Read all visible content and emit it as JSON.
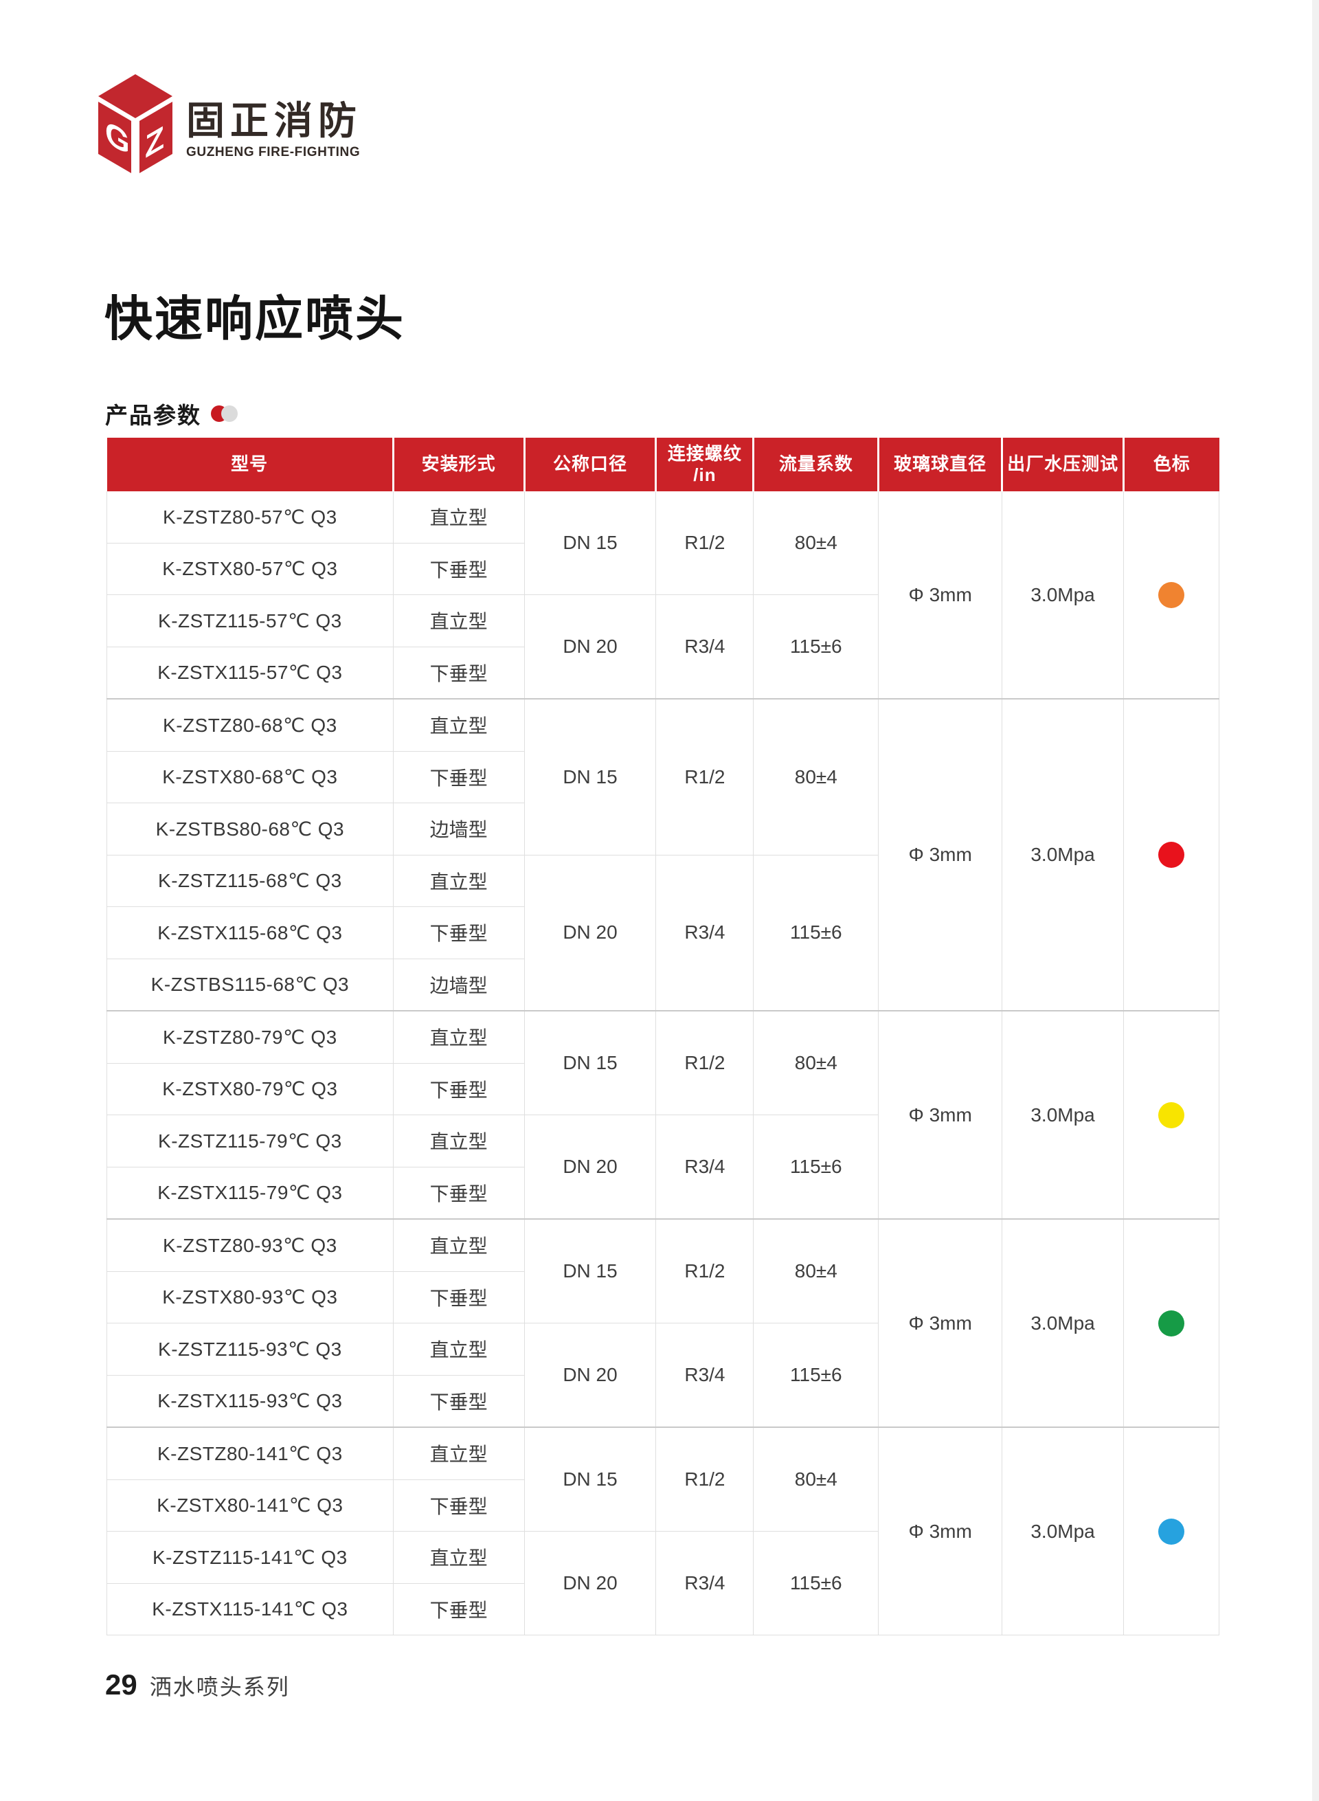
{
  "logo": {
    "mark_letters_left": "G",
    "mark_letters_right": "Z",
    "mark_color": "#c2272e",
    "brand_cn": "固正消防",
    "brand_en": "GUZHENG FIRE-FIGHTING"
  },
  "title": "快速响应喷头",
  "section": {
    "label": "产品参数",
    "icon": "red-gray-dots-icon",
    "icon_red": "#c81a21",
    "icon_gray": "#dbdbdb"
  },
  "table": {
    "header_bg": "#cb2228",
    "columns": [
      {
        "key": "model",
        "label": "型号"
      },
      {
        "key": "install",
        "label": "安装形式"
      },
      {
        "key": "dn",
        "label": "公称口径"
      },
      {
        "key": "thread",
        "label": "连接螺纹",
        "sub": "/in"
      },
      {
        "key": "flow",
        "label": "流量系数"
      },
      {
        "key": "bulb",
        "label": "玻璃球直径"
      },
      {
        "key": "pressure",
        "label": "出厂水压测试"
      },
      {
        "key": "color",
        "label": "色标"
      }
    ],
    "groups": [
      {
        "temperature": "57℃",
        "color_name": "orange",
        "color": "#f08330",
        "bulb": "Φ 3mm",
        "pressure": "3.0Mpa",
        "rows": [
          {
            "model": "K-ZSTZ80-57℃ Q3",
            "install": "直立型"
          },
          {
            "model": "K-ZSTX80-57℃ Q3",
            "install": "下垂型"
          },
          {
            "model": "K-ZSTZ115-57℃ Q3",
            "install": "直立型"
          },
          {
            "model": "K-ZSTX115-57℃ Q3",
            "install": "下垂型"
          }
        ],
        "pairs": [
          {
            "dn": "DN 15",
            "thread": "R1/2",
            "flow": "80±4",
            "span": 2
          },
          {
            "dn": "DN 20",
            "thread": "R3/4",
            "flow": "115±6",
            "span": 2
          }
        ]
      },
      {
        "temperature": "68℃",
        "color_name": "red",
        "color": "#e8121c",
        "bulb": "Φ 3mm",
        "pressure": "3.0Mpa",
        "rows": [
          {
            "model": "K-ZSTZ80-68℃ Q3",
            "install": "直立型"
          },
          {
            "model": "K-ZSTX80-68℃ Q3",
            "install": "下垂型"
          },
          {
            "model": "K-ZSTBS80-68℃ Q3",
            "install": "边墙型"
          },
          {
            "model": "K-ZSTZ115-68℃ Q3",
            "install": "直立型"
          },
          {
            "model": "K-ZSTX115-68℃ Q3",
            "install": "下垂型"
          },
          {
            "model": "K-ZSTBS115-68℃ Q3",
            "install": "边墙型"
          }
        ],
        "pairs": [
          {
            "dn": "DN 15",
            "thread": "R1/2",
            "flow": "80±4",
            "span": 3
          },
          {
            "dn": "DN 20",
            "thread": "R3/4",
            "flow": "115±6",
            "span": 3
          }
        ]
      },
      {
        "temperature": "79℃",
        "color_name": "yellow",
        "color": "#f8e400",
        "bulb": "Φ 3mm",
        "pressure": "3.0Mpa",
        "rows": [
          {
            "model": "K-ZSTZ80-79℃ Q3",
            "install": "直立型"
          },
          {
            "model": "K-ZSTX80-79℃ Q3",
            "install": "下垂型"
          },
          {
            "model": "K-ZSTZ115-79℃ Q3",
            "install": "直立型"
          },
          {
            "model": "K-ZSTX115-79℃ Q3",
            "install": "下垂型"
          }
        ],
        "pairs": [
          {
            "dn": "DN 15",
            "thread": "R1/2",
            "flow": "80±4",
            "span": 2
          },
          {
            "dn": "DN 20",
            "thread": "R3/4",
            "flow": "115±6",
            "span": 2
          }
        ]
      },
      {
        "temperature": "93℃",
        "color_name": "green",
        "color": "#169b46",
        "bulb": "Φ 3mm",
        "pressure": "3.0Mpa",
        "rows": [
          {
            "model": "K-ZSTZ80-93℃ Q3",
            "install": "直立型"
          },
          {
            "model": "K-ZSTX80-93℃ Q3",
            "install": "下垂型"
          },
          {
            "model": "K-ZSTZ115-93℃ Q3",
            "install": "直立型"
          },
          {
            "model": "K-ZSTX115-93℃ Q3",
            "install": "下垂型"
          }
        ],
        "pairs": [
          {
            "dn": "DN 15",
            "thread": "R1/2",
            "flow": "80±4",
            "span": 2
          },
          {
            "dn": "DN 20",
            "thread": "R3/4",
            "flow": "115±6",
            "span": 2
          }
        ]
      },
      {
        "temperature": "141℃",
        "color_name": "blue",
        "color": "#26a2df",
        "bulb": "Φ 3mm",
        "pressure": "3.0Mpa",
        "rows": [
          {
            "model": "K-ZSTZ80-141℃ Q3",
            "install": "直立型"
          },
          {
            "model": "K-ZSTX80-141℃ Q3",
            "install": "下垂型"
          },
          {
            "model": "K-ZSTZ115-141℃ Q3",
            "install": "直立型"
          },
          {
            "model": "K-ZSTX115-141℃ Q3",
            "install": "下垂型"
          }
        ],
        "pairs": [
          {
            "dn": "DN 15",
            "thread": "R1/2",
            "flow": "80±4",
            "span": 2
          },
          {
            "dn": "DN 20",
            "thread": "R3/4",
            "flow": "115±6",
            "span": 2
          }
        ]
      }
    ]
  },
  "footer": {
    "page_number": "29",
    "series": "洒水喷头系列"
  }
}
